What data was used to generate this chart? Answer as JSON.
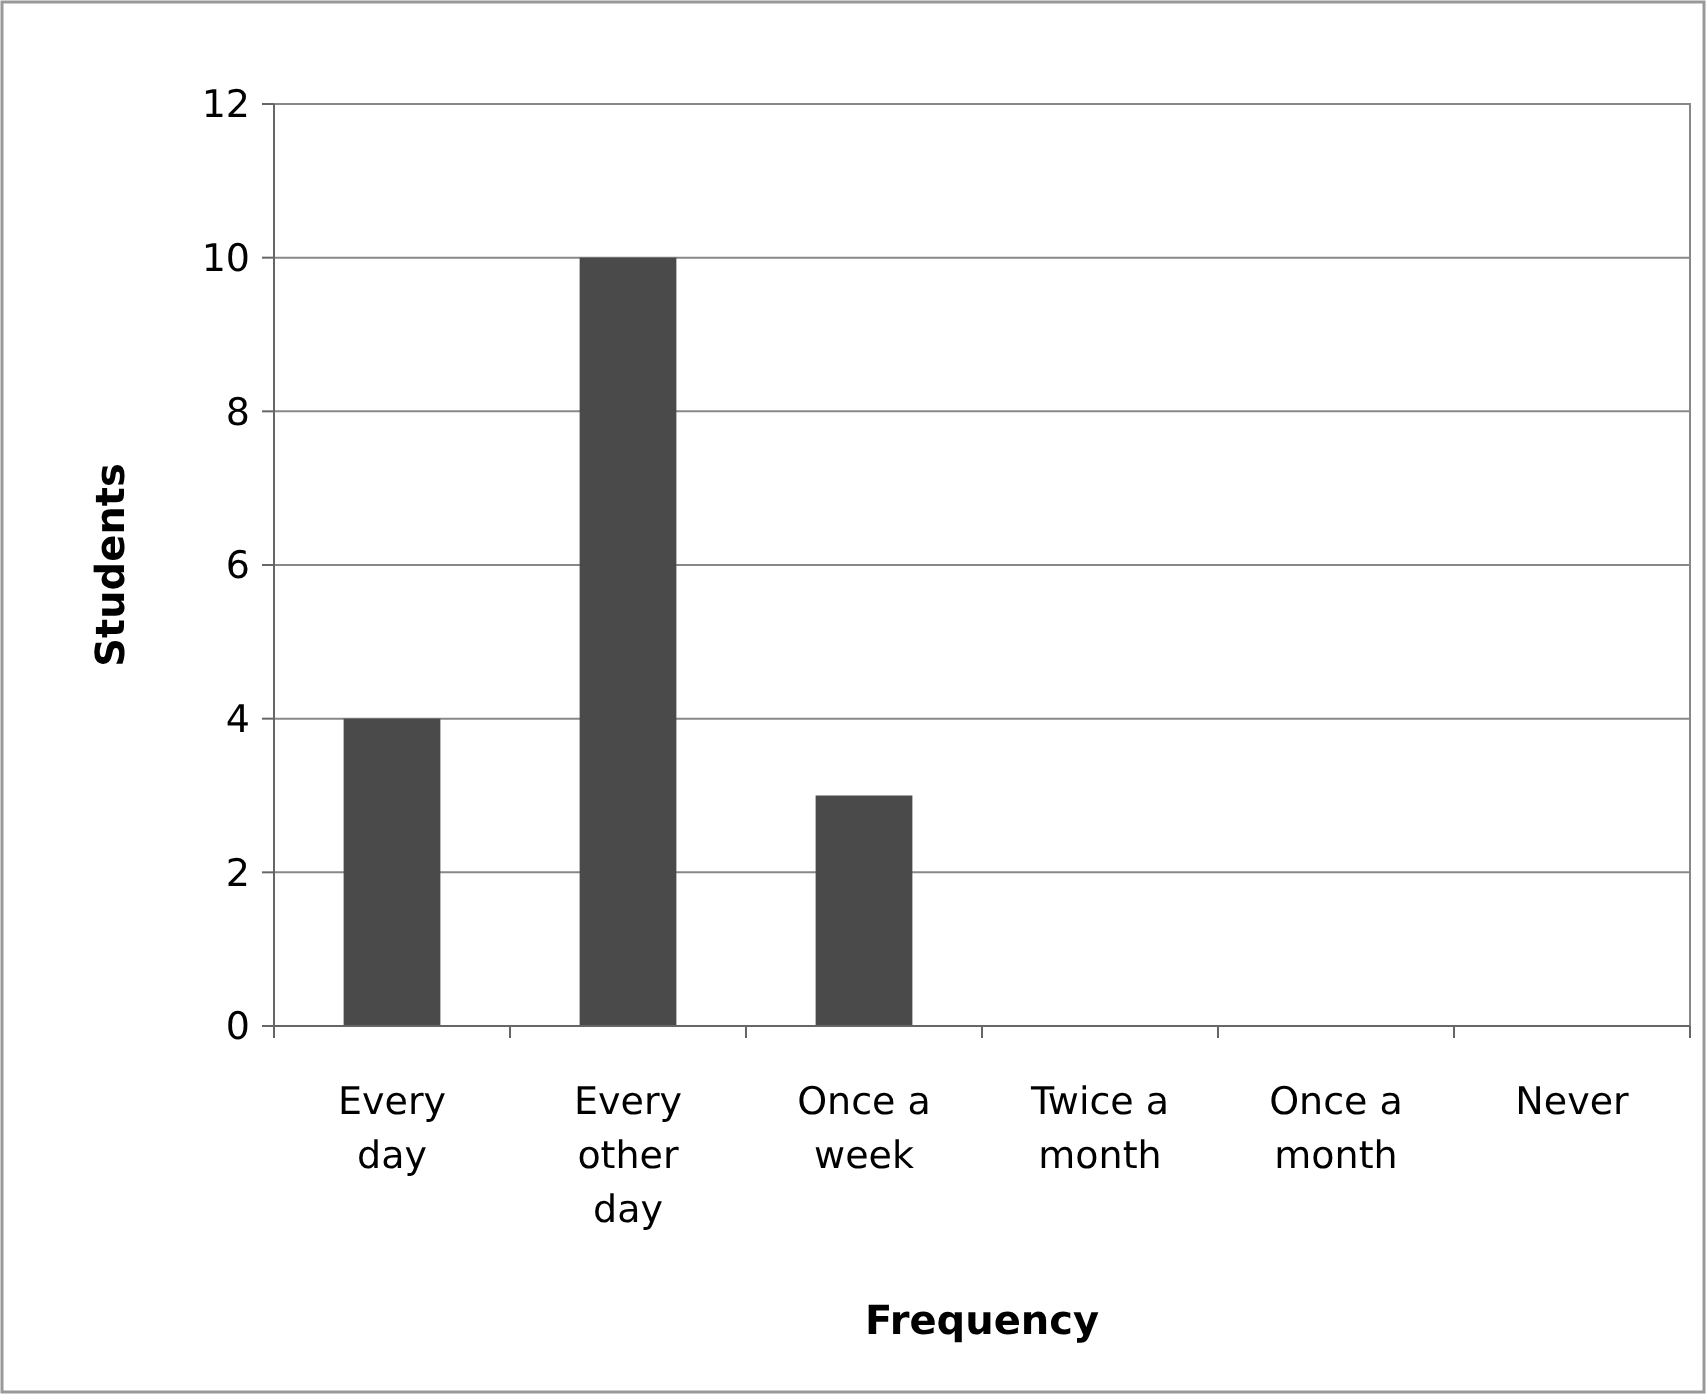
{
  "chart_data": {
    "type": "bar",
    "xlabel": "Frequency",
    "ylabel": "Students",
    "categories": [
      "Every day",
      "Every other day",
      "Once a week",
      "Twice a month",
      "Once a month",
      "Never"
    ],
    "values": [
      4,
      10,
      3,
      0,
      0,
      0
    ],
    "color": "#4a4a4a",
    "ylim": [
      0,
      12
    ],
    "yticks": [
      0,
      2,
      4,
      6,
      8,
      10,
      12
    ],
    "grid": "y"
  }
}
